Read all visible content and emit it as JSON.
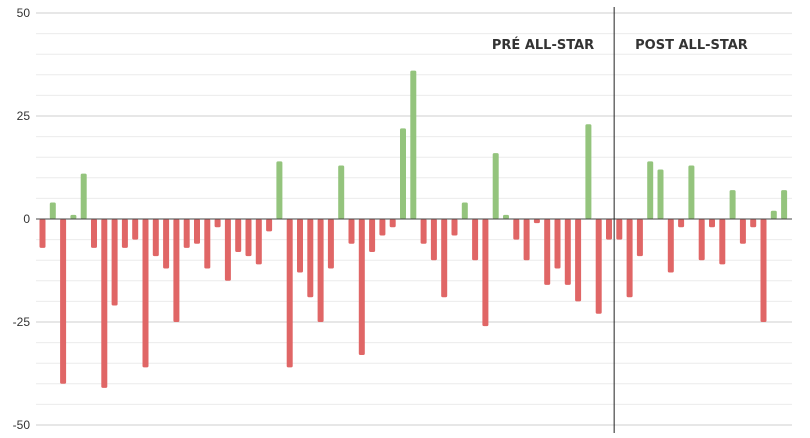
{
  "chart_data": {
    "type": "bar",
    "title": "",
    "xlabel": "",
    "ylabel": "",
    "ylim": [
      -50,
      50
    ],
    "yticks": [
      50,
      25,
      0,
      -25,
      -50
    ],
    "grid": true,
    "positive_color": "#94c47d",
    "negative_color": "#e06666",
    "divider_after_index": 56,
    "sections": [
      {
        "label": "PRÉ ALL-STAR"
      },
      {
        "label": "POST ALL-STAR"
      }
    ],
    "values": [
      -7,
      4,
      -40,
      1,
      11,
      -7,
      -41,
      -21,
      -7,
      -5,
      -36,
      -9,
      -12,
      -25,
      -7,
      -6,
      -12,
      -2,
      -15,
      -8,
      -9,
      -11,
      -3,
      14,
      -36,
      -13,
      -19,
      -25,
      -12,
      13,
      -6,
      -33,
      -8,
      -4,
      -2,
      22,
      36,
      -6,
      -10,
      -19,
      -4,
      4,
      -10,
      -26,
      16,
      1,
      -5,
      -10,
      -1,
      -16,
      -12,
      -16,
      -20,
      23,
      -23,
      -5,
      -5,
      -19,
      -9,
      14,
      12,
      -13,
      -2,
      13,
      -10,
      -2,
      -11,
      7,
      -6,
      -2,
      -25,
      2,
      7
    ]
  }
}
